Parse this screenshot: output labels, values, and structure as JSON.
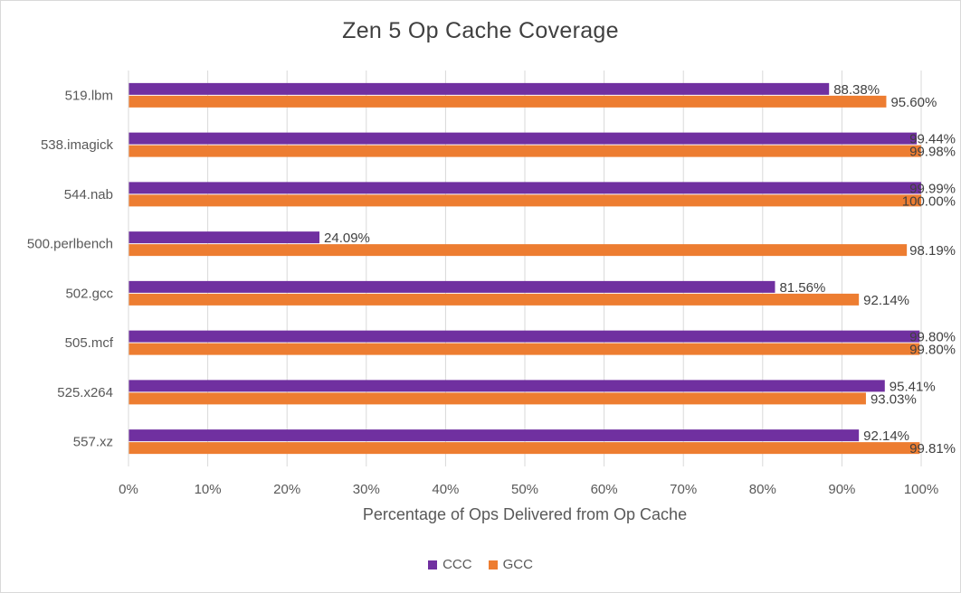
{
  "chart_data": {
    "type": "bar",
    "orientation": "horizontal",
    "title": "Zen 5 Op Cache Coverage",
    "xlabel": "Percentage of Ops Delivered from Op Cache",
    "ylabel": "",
    "xlim": [
      0,
      100
    ],
    "x_ticks": [
      "0%",
      "10%",
      "20%",
      "30%",
      "40%",
      "50%",
      "60%",
      "70%",
      "80%",
      "90%",
      "100%"
    ],
    "grid": true,
    "legend_position": "bottom",
    "categories": [
      "519.lbm",
      "538.imagick",
      "544.nab",
      "500.perlbench",
      "502.gcc",
      "505.mcf",
      "525.x264",
      "557.xz"
    ],
    "series": [
      {
        "name": "CCC",
        "color": "#7030a0",
        "values": [
          88.38,
          99.44,
          99.99,
          24.09,
          81.56,
          99.8,
          95.41,
          92.14
        ],
        "labels": [
          "88.38%",
          "99.44%",
          "99.99%",
          "24.09%",
          "81.56%",
          "99.80%",
          "95.41%",
          "92.14%"
        ]
      },
      {
        "name": "GCC",
        "color": "#ed7d31",
        "values": [
          95.6,
          99.98,
          100.0,
          98.19,
          92.14,
          99.8,
          93.03,
          99.81
        ],
        "labels": [
          "95.60%",
          "99.98%",
          "100.00%",
          "98.19%",
          "92.14%",
          "99.80%",
          "93.03%",
          "99.81%"
        ]
      }
    ]
  }
}
